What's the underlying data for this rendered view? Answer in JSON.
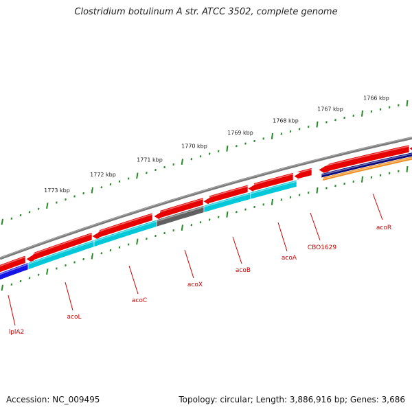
{
  "title": "Clostridium botulinum A str. ATCC 3502, complete genome",
  "footer": {
    "accession": "Accession: NC_009495",
    "topology": "Topology: circular; Length: 3,886,916 bp; Genes: 3,686"
  },
  "colors": {
    "backbone": "#7a7a7a",
    "tick_major": "#228B22",
    "tick_minor": "#2e8b2e",
    "red": "#e60000",
    "cyan": "#00c8d8",
    "gray": "#606060",
    "blue": "#1414e6",
    "navy": "#0a0a7a",
    "orange": "#f08c1e",
    "label": "#cc0000"
  },
  "kbp_labels": [
    "1766 kbp",
    "1767 kbp",
    "1768 kbp",
    "1769 kbp",
    "1770 kbp",
    "1771 kbp",
    "1772 kbp",
    "1773 kbp"
  ],
  "genes": [
    {
      "name": "lplA2",
      "color": "blue"
    },
    {
      "name": "acoL",
      "color": "cyan"
    },
    {
      "name": "acoC",
      "color": "cyan"
    },
    {
      "name": "acoX",
      "color": "gray"
    },
    {
      "name": "acoB",
      "color": "cyan"
    },
    {
      "name": "acoA",
      "color": "cyan"
    },
    {
      "name": "CBO1629",
      "color": "red"
    },
    {
      "name": "acoR",
      "color": "navy"
    }
  ]
}
